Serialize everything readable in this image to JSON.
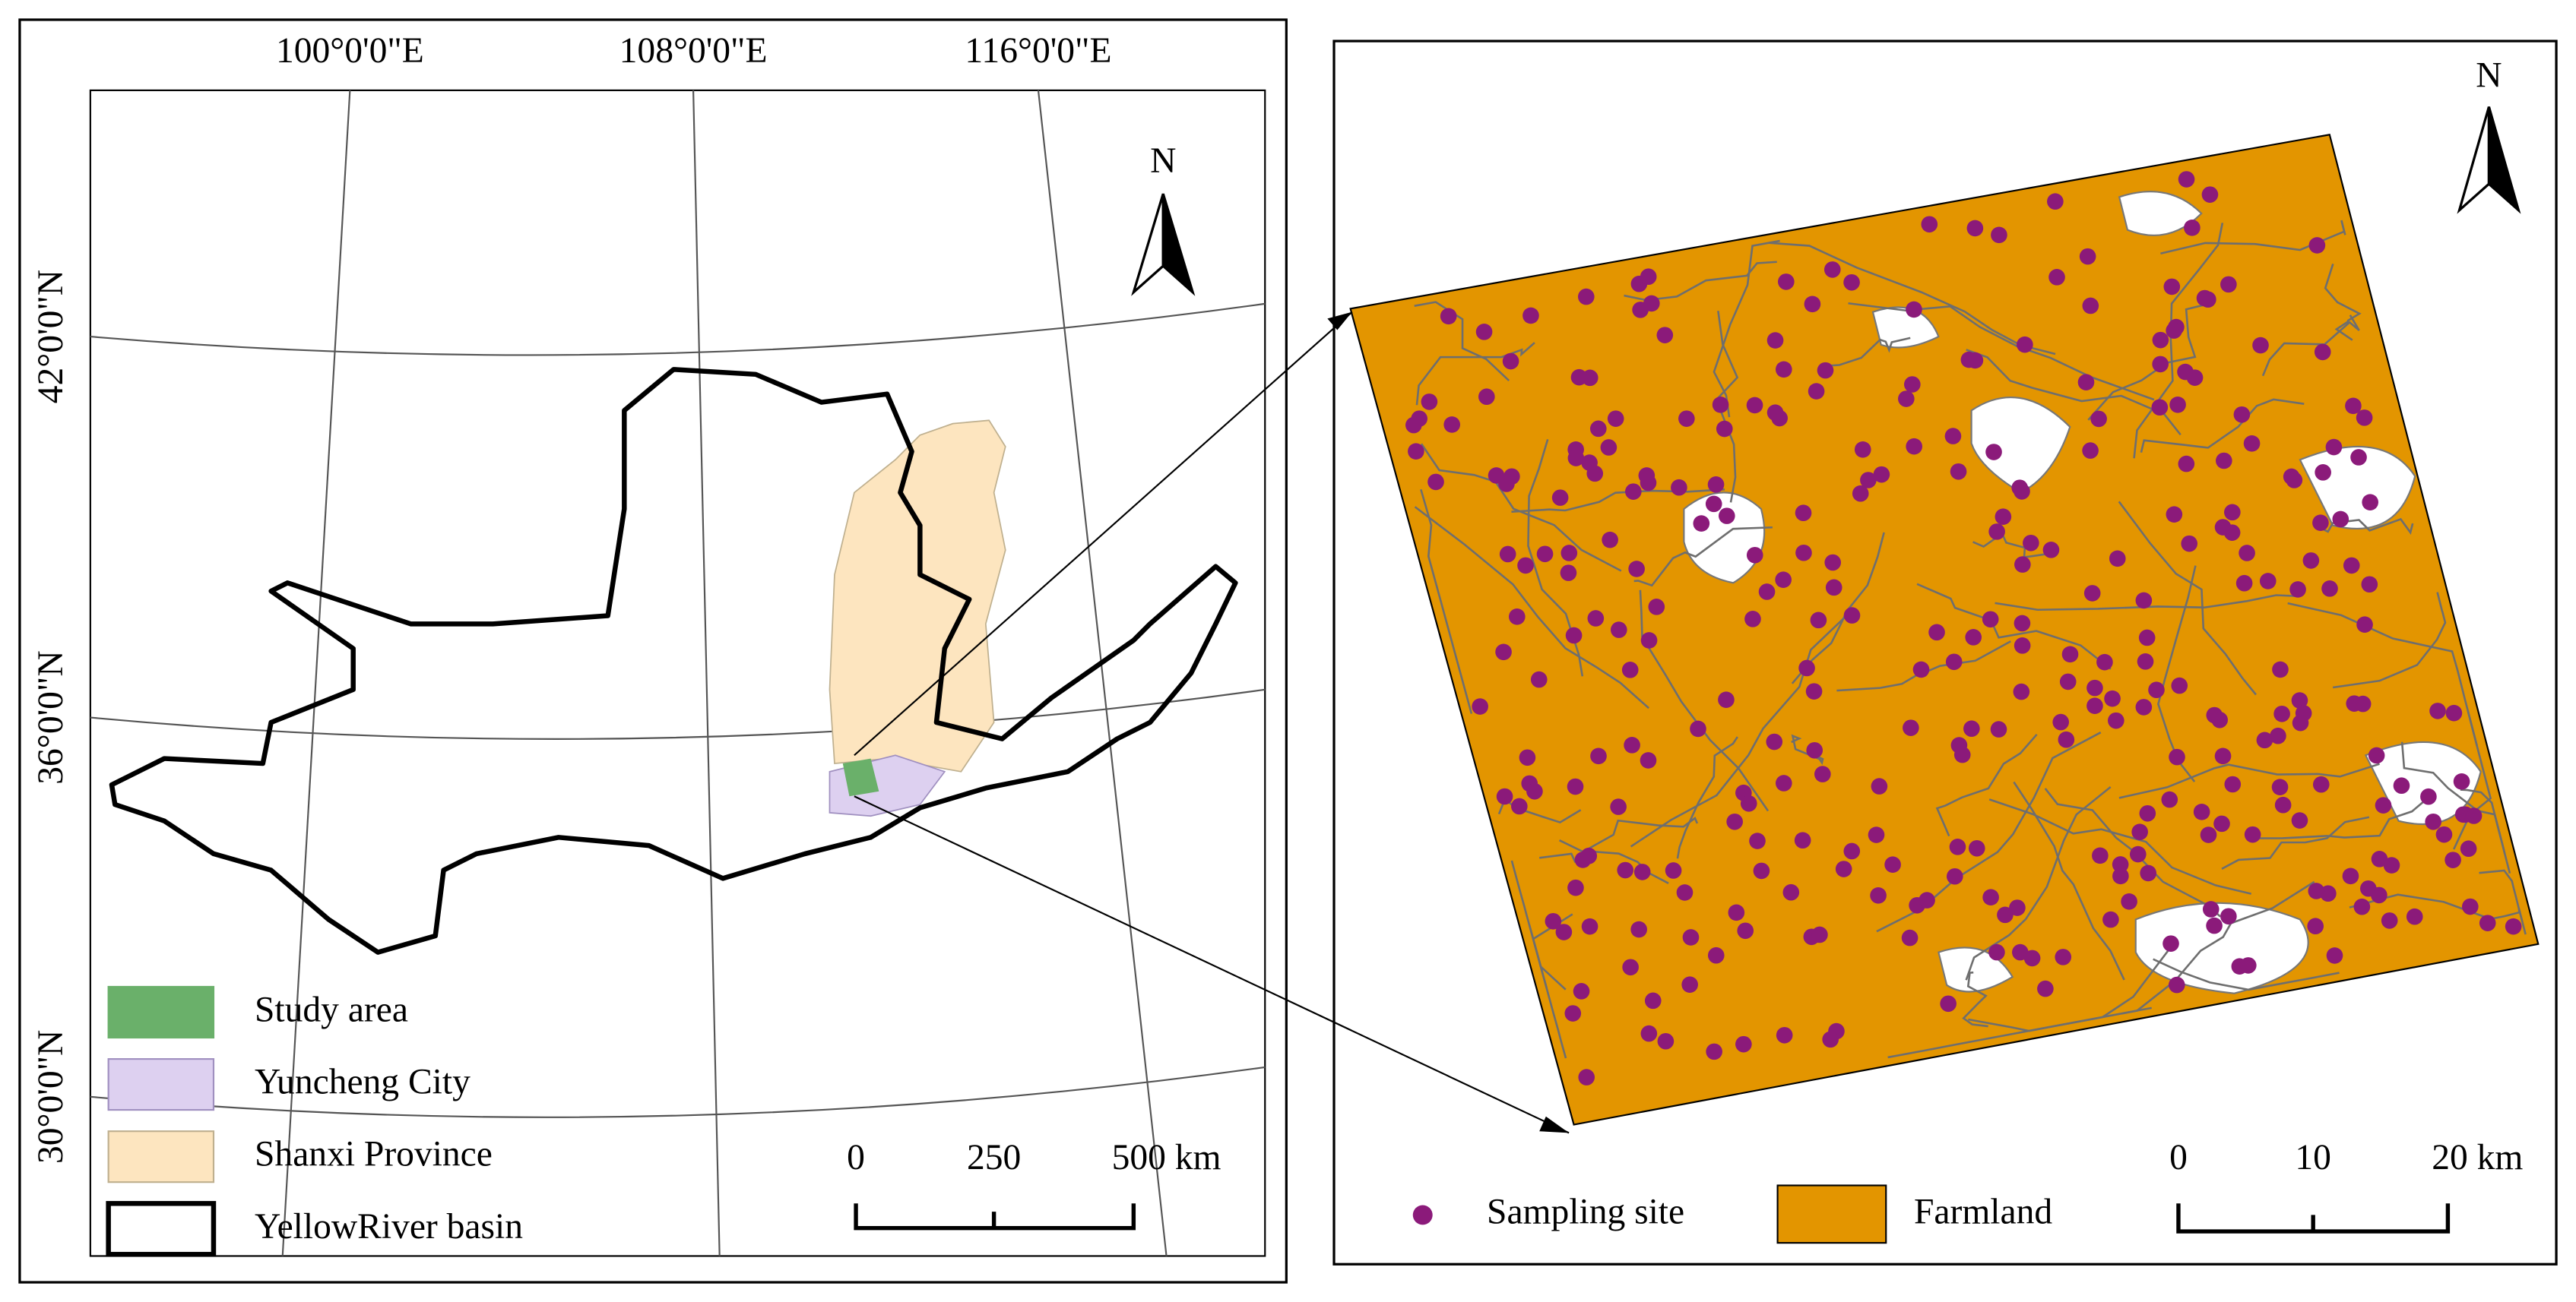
{
  "left_map": {
    "lon_labels": [
      "100°0'0\"E",
      "108°0'0\"E",
      "116°0'0\"E"
    ],
    "lat_labels": [
      "42°0'0\"N",
      "36°0'0\"N",
      "30°0'0\"N"
    ],
    "north": "N",
    "legend": [
      "Study area",
      "Yuncheng City",
      "Shanxi Province",
      "YellowRiver basin"
    ],
    "scale_bar": [
      "0",
      "250",
      "500 km"
    ]
  },
  "right_map": {
    "north": "N",
    "legend": [
      "Sampling site",
      "Farmland"
    ],
    "scale_bar": [
      "0",
      "10",
      "20 km"
    ]
  }
}
